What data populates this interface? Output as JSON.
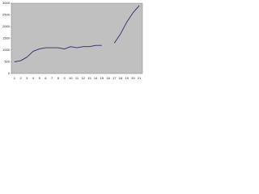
{
  "chart_data": {
    "type": "line",
    "categories": [
      "1",
      "2",
      "3",
      "4",
      "5",
      "6",
      "7",
      "8",
      "9",
      "10",
      "11",
      "12",
      "13",
      "14",
      "15",
      "16",
      "17",
      "18",
      "19",
      "20",
      "21"
    ],
    "series": [
      {
        "color": "#2b2b6b",
        "values": [
          500,
          550,
          700,
          950,
          1050,
          1100,
          1100,
          1100,
          1050,
          1150,
          1100,
          1150,
          1150,
          1200,
          1200,
          null,
          1300,
          1700,
          2200,
          2600,
          2900
        ]
      }
    ],
    "ylim": [
      0,
      3000
    ],
    "yticks": [
      0,
      500,
      1000,
      1500,
      2000,
      2500,
      3000
    ],
    "grid": false
  }
}
